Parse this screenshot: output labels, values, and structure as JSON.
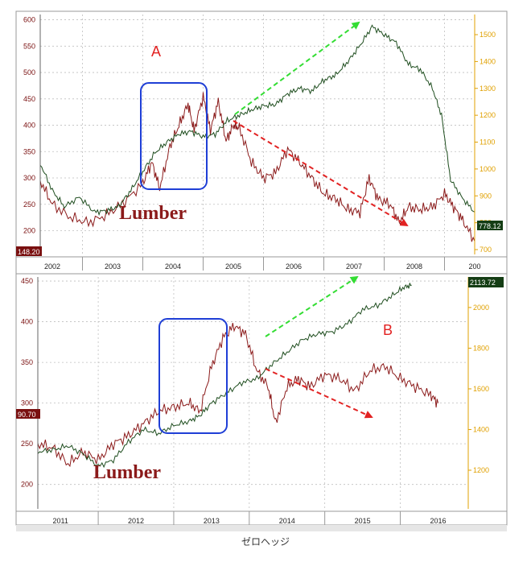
{
  "caption": "ゼロヘッジ",
  "colors": {
    "lumber": "#8b1a1a",
    "index": "#1e4d1e",
    "right_axis": "#e0a000",
    "box": "#1f3fd6",
    "up_arrow": "#33dd33",
    "down_arrow": "#e22222",
    "panel_label": "#e22222",
    "grid": "#bfbfbf"
  },
  "chart_data": [
    {
      "type": "line",
      "panel_label": "A",
      "series_label": "Lumber",
      "x_tick_labels": [
        "2002",
        "2003",
        "2004",
        "2005",
        "2006",
        "2007",
        "2008",
        "200"
      ],
      "xlim": [
        2001.8,
        2009.0
      ],
      "left_axis": {
        "ticks": [
          200,
          250,
          300,
          350,
          400,
          450,
          500,
          550,
          600
        ],
        "ylim": [
          155,
          610
        ]
      },
      "right_axis": {
        "ticks": [
          700,
          800,
          900,
          1000,
          1100,
          1200,
          1300,
          1400,
          1500
        ],
        "ylim": [
          682,
          1575
        ]
      },
      "last_value_labels": {
        "left": "148.20",
        "right": "778.12"
      },
      "series": [
        {
          "axis": "left",
          "points": [
            [
              2001.8,
              295
            ],
            [
              2002.0,
              250
            ],
            [
              2002.3,
              225
            ],
            [
              2002.6,
              215
            ],
            [
              2002.9,
              230
            ],
            [
              2003.2,
              255
            ],
            [
              2003.5,
              290
            ],
            [
              2003.65,
              330
            ],
            [
              2003.78,
              280
            ],
            [
              2003.95,
              360
            ],
            [
              2004.1,
              400
            ],
            [
              2004.25,
              440
            ],
            [
              2004.35,
              390
            ],
            [
              2004.5,
              455
            ],
            [
              2004.62,
              390
            ],
            [
              2004.75,
              445
            ],
            [
              2004.88,
              370
            ],
            [
              2005.0,
              400
            ],
            [
              2005.1,
              395
            ],
            [
              2005.3,
              330
            ],
            [
              2005.5,
              300
            ],
            [
              2005.7,
              310
            ],
            [
              2005.9,
              355
            ],
            [
              2006.1,
              330
            ],
            [
              2006.3,
              300
            ],
            [
              2006.5,
              270
            ],
            [
              2006.7,
              260
            ],
            [
              2006.9,
              240
            ],
            [
              2007.1,
              235
            ],
            [
              2007.25,
              300
            ],
            [
              2007.4,
              260
            ],
            [
              2007.6,
              250
            ],
            [
              2007.75,
              215
            ],
            [
              2007.9,
              245
            ],
            [
              2008.1,
              240
            ],
            [
              2008.3,
              245
            ],
            [
              2008.5,
              270
            ],
            [
              2008.65,
              245
            ],
            [
              2008.8,
              220
            ],
            [
              2009.0,
              180
            ]
          ]
        },
        {
          "axis": "right",
          "points": [
            [
              2001.8,
              1020
            ],
            [
              2002.0,
              920
            ],
            [
              2002.2,
              860
            ],
            [
              2002.45,
              895
            ],
            [
              2002.7,
              840
            ],
            [
              2002.9,
              845
            ],
            [
              2003.1,
              860
            ],
            [
              2003.3,
              920
            ],
            [
              2003.5,
              990
            ],
            [
              2003.7,
              1060
            ],
            [
              2003.9,
              1100
            ],
            [
              2004.1,
              1130
            ],
            [
              2004.3,
              1140
            ],
            [
              2004.5,
              1120
            ],
            [
              2004.7,
              1130
            ],
            [
              2004.9,
              1180
            ],
            [
              2005.1,
              1200
            ],
            [
              2005.3,
              1220
            ],
            [
              2005.5,
              1235
            ],
            [
              2005.7,
              1240
            ],
            [
              2005.9,
              1280
            ],
            [
              2006.1,
              1300
            ],
            [
              2006.3,
              1290
            ],
            [
              2006.5,
              1330
            ],
            [
              2006.7,
              1350
            ],
            [
              2006.9,
              1400
            ],
            [
              2007.1,
              1460
            ],
            [
              2007.3,
              1530
            ],
            [
              2007.5,
              1500
            ],
            [
              2007.7,
              1470
            ],
            [
              2007.9,
              1390
            ],
            [
              2008.1,
              1370
            ],
            [
              2008.3,
              1300
            ],
            [
              2008.45,
              1200
            ],
            [
              2008.6,
              960
            ],
            [
              2008.8,
              890
            ],
            [
              2009.0,
              840
            ]
          ]
        }
      ]
    },
    {
      "type": "line",
      "panel_label": "B",
      "series_label": "Lumber",
      "x_tick_labels": [
        "2011",
        "2012",
        "2013",
        "2014",
        "2015",
        "2016"
      ],
      "xlim": [
        2010.7,
        2016.4
      ],
      "left_axis": {
        "ticks": [
          200,
          250,
          300,
          350,
          400,
          450
        ],
        "ylim": [
          170,
          455
        ]
      },
      "right_axis": {
        "ticks": [
          1200,
          1400,
          1600,
          1800,
          2000
        ],
        "ylim": [
          1010,
          2150
        ]
      },
      "last_value_labels": {
        "left": "90.70",
        "right": "2113.72"
      },
      "series": [
        {
          "axis": "left",
          "points": [
            [
              2010.7,
              250
            ],
            [
              2010.9,
              245
            ],
            [
              2011.1,
              225
            ],
            [
              2011.3,
              240
            ],
            [
              2011.5,
              230
            ],
            [
              2011.7,
              250
            ],
            [
              2011.9,
              260
            ],
            [
              2012.1,
              275
            ],
            [
              2012.3,
              290
            ],
            [
              2012.5,
              295
            ],
            [
              2012.7,
              300
            ],
            [
              2012.85,
              290
            ],
            [
              2013.0,
              345
            ],
            [
              2013.15,
              380
            ],
            [
              2013.3,
              395
            ],
            [
              2013.45,
              385
            ],
            [
              2013.6,
              340
            ],
            [
              2013.75,
              320
            ],
            [
              2013.85,
              275
            ],
            [
              2014.0,
              320
            ],
            [
              2014.15,
              330
            ],
            [
              2014.3,
              320
            ],
            [
              2014.5,
              335
            ],
            [
              2014.7,
              330
            ],
            [
              2014.9,
              315
            ],
            [
              2015.1,
              340
            ],
            [
              2015.3,
              345
            ],
            [
              2015.5,
              330
            ],
            [
              2015.7,
              320
            ],
            [
              2015.9,
              310
            ],
            [
              2016.0,
              300
            ]
          ]
        },
        {
          "axis": "right",
          "points": [
            [
              2010.7,
              1290
            ],
            [
              2010.9,
              1300
            ],
            [
              2011.1,
              1320
            ],
            [
              2011.3,
              1280
            ],
            [
              2011.5,
              1220
            ],
            [
              2011.7,
              1250
            ],
            [
              2011.9,
              1340
            ],
            [
              2012.1,
              1400
            ],
            [
              2012.3,
              1380
            ],
            [
              2012.5,
              1420
            ],
            [
              2012.7,
              1440
            ],
            [
              2012.85,
              1470
            ],
            [
              2013.0,
              1530
            ],
            [
              2013.2,
              1580
            ],
            [
              2013.4,
              1630
            ],
            [
              2013.6,
              1650
            ],
            [
              2013.8,
              1720
            ],
            [
              2014.0,
              1780
            ],
            [
              2014.2,
              1840
            ],
            [
              2014.4,
              1870
            ],
            [
              2014.6,
              1880
            ],
            [
              2014.8,
              1920
            ],
            [
              2015.0,
              1990
            ],
            [
              2015.2,
              2010
            ],
            [
              2015.4,
              2060
            ],
            [
              2015.55,
              2100
            ],
            [
              2015.65,
              2110
            ]
          ]
        }
      ]
    }
  ]
}
